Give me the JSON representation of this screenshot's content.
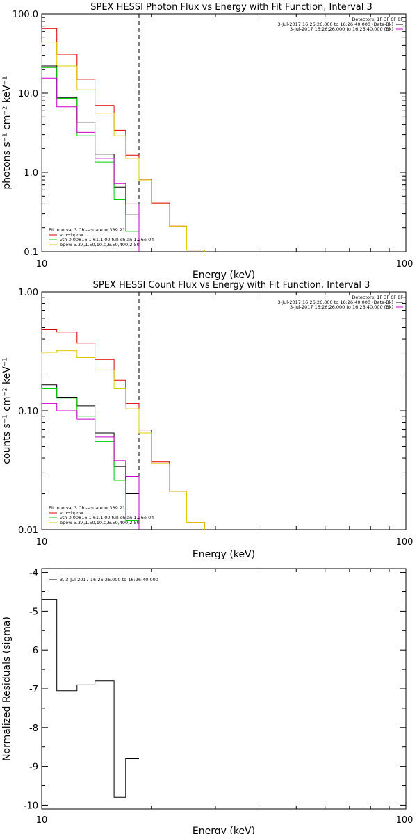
{
  "colors": {
    "total": "#000000",
    "data": "#cc00cc",
    "fit": "#dd0000",
    "vth": "#00cc00",
    "bpow": "#ddcc00",
    "dashed": "#000000"
  },
  "chart_data": [
    {
      "type": "line",
      "step": true,
      "title": "SPEX HESSI Photon Flux vs Energy with Fit Function, Interval 3",
      "xlabel": "Energy (keV)",
      "ylabel": "photons s⁻¹ cm⁻² keV⁻¹",
      "xscale": "log",
      "yscale": "log",
      "xlim": [
        10,
        100
      ],
      "ylim": [
        0.1,
        100
      ],
      "xticklabels": [
        "10",
        "100"
      ],
      "yticks": [
        0.1,
        1,
        10,
        100
      ],
      "yticklabels": [
        "0.1",
        "1.0",
        "10.0",
        "100.0"
      ],
      "fit_limit": 18.5,
      "x_edges": [
        10,
        11,
        12.5,
        14,
        15.8,
        17,
        18.5,
        20,
        22.4,
        25,
        28,
        31.5
      ],
      "info": {
        "detectors": "Detectors: 1F 3F 6F 8F",
        "line1": "3-Jul-2017 16:26:26.000 to 16:26:40.000 (Data-Bk)",
        "line2": "3-Jul-2017 16:26:26.000 to 16:26:40.000 (Bk)"
      },
      "legend_lines": {
        "header": "Fit Interval 3   Chi-square = 339.21",
        "total": "vth+bpow",
        "vth": "vth 0.00816,1.61,1.00  full chian 1.26e-04",
        "bpow": "bpow 5.37,1.50,10.0,6.50,400,2.50"
      },
      "series": [
        {
          "key": "fit",
          "values": [
            65,
            31,
            15,
            7,
            3.4,
            1.65,
            0.82,
            0.41,
            0.21,
            0.105,
            null
          ]
        },
        {
          "key": "bpow",
          "values": [
            44,
            22,
            11,
            5.6,
            2.9,
            1.5,
            0.8,
            0.4,
            0.21,
            0.105,
            null
          ]
        },
        {
          "key": "total",
          "values": [
            22,
            8.8,
            4.3,
            1.7,
            0.65,
            0.29,
            null,
            null,
            null,
            null,
            null
          ]
        },
        {
          "key": "vth",
          "values": [
            21,
            8.6,
            2.9,
            1.35,
            0.45,
            0.18,
            null,
            null,
            null,
            null,
            null
          ]
        },
        {
          "key": "data",
          "values": [
            15.5,
            6.7,
            3.2,
            1.5,
            0.72,
            0.4,
            null,
            null,
            null,
            null,
            null
          ]
        }
      ]
    },
    {
      "type": "line",
      "step": true,
      "title": "SPEX HESSI Count Flux vs Energy with Fit Function, Interval 3",
      "xlabel": "Energy (keV)",
      "ylabel": "counts s⁻¹ cm⁻² keV⁻¹",
      "xscale": "log",
      "yscale": "log",
      "xlim": [
        10,
        100
      ],
      "ylim": [
        0.01,
        1
      ],
      "xticklabels": [
        "10",
        "100"
      ],
      "yticks": [
        0.01,
        0.1,
        1
      ],
      "yticklabels": [
        "0.01",
        "0.10",
        "1.00"
      ],
      "fit_limit": 18.5,
      "x_edges": [
        10,
        11,
        12.5,
        14,
        15.8,
        17,
        18.5,
        20,
        22.4,
        25,
        28,
        31.5
      ],
      "info": {
        "detectors": "Detectors: 1F 3F 6F 8F",
        "line1": "3-Jul-2017 16:26:26.000 to 16:26:40.000 (Data-Bk)",
        "line2": "3-Jul-2017 16:26:26.000 to 16:26:40.000 (Bk)"
      },
      "legend_lines": {
        "header": "Fit Interval 3   Chi-square = 339.21",
        "total": "vth+bpow",
        "vth": "vth 0.00816,1.61,1.00  full chian 1.26e-04",
        "bpow": "bpow 5.37,1.50,10.0,6.50,400,2.50"
      },
      "series": [
        {
          "key": "fit",
          "values": [
            0.48,
            0.46,
            0.37,
            0.27,
            0.18,
            0.115,
            0.069,
            0.037,
            0.021,
            0.0115,
            null
          ]
        },
        {
          "key": "bpow",
          "values": [
            0.31,
            0.32,
            0.28,
            0.22,
            0.155,
            0.104,
            0.065,
            0.036,
            0.021,
            0.0115,
            null
          ]
        },
        {
          "key": "total",
          "values": [
            0.165,
            0.13,
            0.11,
            0.065,
            0.034,
            0.02,
            null,
            null,
            null,
            null,
            null
          ]
        },
        {
          "key": "vth",
          "values": [
            0.155,
            0.128,
            0.09,
            0.055,
            0.026,
            0.012,
            null,
            null,
            null,
            null,
            null
          ]
        },
        {
          "key": "data",
          "values": [
            0.115,
            0.1,
            0.085,
            0.06,
            0.038,
            0.028,
            null,
            null,
            null,
            null,
            null
          ]
        }
      ]
    },
    {
      "type": "line",
      "step": true,
      "title": "",
      "xlabel": "Energy (keV)",
      "ylabel": "Normalized Residuals (sigma)",
      "xscale": "log",
      "yscale": "linear",
      "xlim": [
        10,
        100
      ],
      "ylim": [
        -10.1,
        -3.9
      ],
      "xticklabels": [
        "10",
        "100"
      ],
      "yticks": [
        -10,
        -9,
        -8,
        -7,
        -6,
        -5,
        -4
      ],
      "yticklabels": [
        "-10",
        "-9",
        "-8",
        "-7",
        "-6",
        "-5",
        "-4"
      ],
      "legend": "3,  3-Jul-2017 16:26:26.000 to 16:26:40.000",
      "x_edges": [
        10,
        11,
        12.5,
        14,
        15.8,
        17,
        18.5
      ],
      "series": [
        {
          "key": "total",
          "values": [
            -4.7,
            -7.05,
            -6.9,
            -6.8,
            -9.8,
            -8.8
          ]
        }
      ]
    }
  ]
}
